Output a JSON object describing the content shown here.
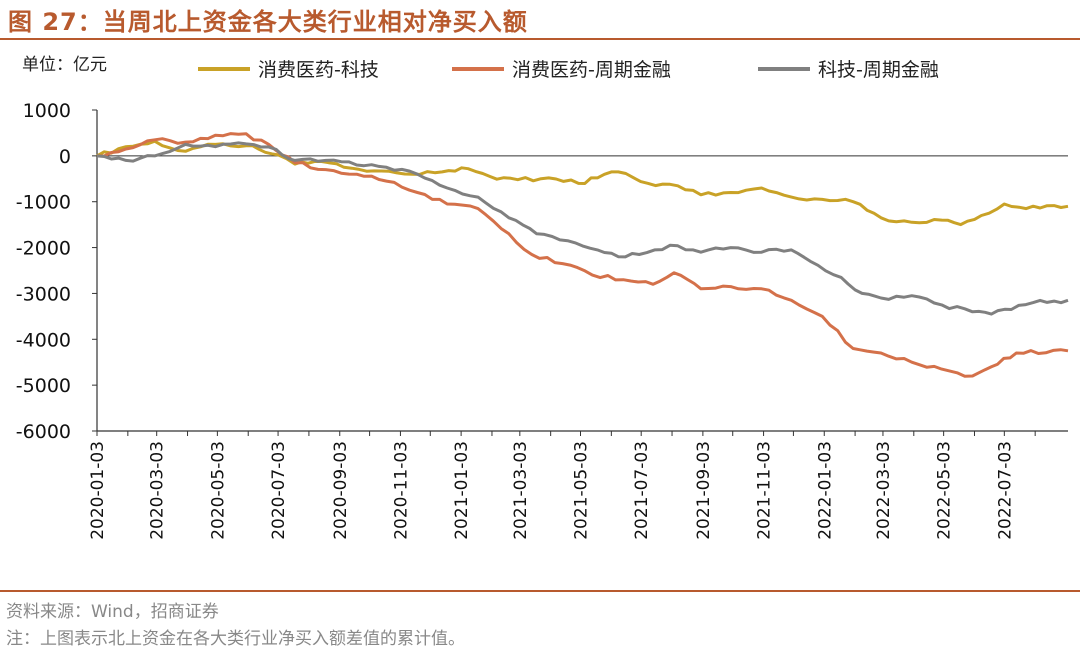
{
  "title": "图 27：当周北上资金各大类行业相对净买入额",
  "unit_label": "单位：亿元",
  "source": "资料来源：Wind，招商证券",
  "note": "注：上图表示北上资金在各大类行业净买入额差值的累计值。",
  "chart_data": {
    "type": "line",
    "ylim": [
      -6000,
      1000
    ],
    "yticks": [
      1000,
      0,
      -1000,
      -2000,
      -3000,
      -4000,
      -5000,
      -6000
    ],
    "xlim": [
      "2020-01-03",
      "2022-09-05"
    ],
    "x_tick_labels": [
      "2020-01-03",
      "2020-03-03",
      "2020-05-03",
      "2020-07-03",
      "2020-09-03",
      "2020-11-03",
      "2021-01-03",
      "2021-03-03",
      "2021-05-03",
      "2021-07-03",
      "2021-09-03",
      "2021-11-03",
      "2022-01-03",
      "2022-03-03",
      "2022-05-03",
      "2022-07-03"
    ],
    "series": [
      {
        "name": "消费医药-科技",
        "color": "#c9a227",
        "points": [
          [
            "2020-01-03",
            0
          ],
          [
            "2020-02-01",
            200
          ],
          [
            "2020-03-01",
            320
          ],
          [
            "2020-04-01",
            100
          ],
          [
            "2020-05-01",
            250
          ],
          [
            "2020-06-01",
            220
          ],
          [
            "2020-07-03",
            20
          ],
          [
            "2020-07-20",
            -180
          ],
          [
            "2020-08-15",
            -120
          ],
          [
            "2020-09-15",
            -270
          ],
          [
            "2020-10-15",
            -330
          ],
          [
            "2020-11-15",
            -400
          ],
          [
            "2020-12-15",
            -350
          ],
          [
            "2021-01-10",
            -280
          ],
          [
            "2021-02-01",
            -450
          ],
          [
            "2021-03-01",
            -520
          ],
          [
            "2021-04-01",
            -480
          ],
          [
            "2021-05-01",
            -600
          ],
          [
            "2021-05-20",
            -480
          ],
          [
            "2021-06-10",
            -350
          ],
          [
            "2021-07-10",
            -600
          ],
          [
            "2021-08-01",
            -620
          ],
          [
            "2021-09-01",
            -850
          ],
          [
            "2021-10-01",
            -800
          ],
          [
            "2021-11-01",
            -700
          ],
          [
            "2021-12-01",
            -900
          ],
          [
            "2022-01-01",
            -950
          ],
          [
            "2022-02-01",
            -1000
          ],
          [
            "2022-03-01",
            -1350
          ],
          [
            "2022-04-01",
            -1450
          ],
          [
            "2022-05-01",
            -1400
          ],
          [
            "2022-05-20",
            -1500
          ],
          [
            "2022-06-10",
            -1300
          ],
          [
            "2022-07-03",
            -1050
          ],
          [
            "2022-07-25",
            -1150
          ],
          [
            "2022-09-05",
            -1100
          ]
        ]
      },
      {
        "name": "消费医药-周期金融",
        "color": "#d4714a",
        "points": [
          [
            "2020-01-03",
            0
          ],
          [
            "2020-02-01",
            150
          ],
          [
            "2020-03-01",
            350
          ],
          [
            "2020-04-01",
            300
          ],
          [
            "2020-05-01",
            450
          ],
          [
            "2020-06-01",
            480
          ],
          [
            "2020-07-01",
            120
          ],
          [
            "2020-07-20",
            -150
          ],
          [
            "2020-08-20",
            -300
          ],
          [
            "2020-09-20",
            -400
          ],
          [
            "2020-10-20",
            -550
          ],
          [
            "2020-11-20",
            -800
          ],
          [
            "2020-12-20",
            -1050
          ],
          [
            "2021-01-20",
            -1150
          ],
          [
            "2021-02-20",
            -1700
          ],
          [
            "2021-03-15",
            -2150
          ],
          [
            "2021-04-15",
            -2350
          ],
          [
            "2021-05-15",
            -2600
          ],
          [
            "2021-06-15",
            -2700
          ],
          [
            "2021-07-15",
            -2800
          ],
          [
            "2021-08-05",
            -2550
          ],
          [
            "2021-09-01",
            -2900
          ],
          [
            "2021-10-01",
            -2850
          ],
          [
            "2021-11-01",
            -2900
          ],
          [
            "2021-12-01",
            -3150
          ],
          [
            "2022-01-01",
            -3500
          ],
          [
            "2022-02-01",
            -4200
          ],
          [
            "2022-03-01",
            -4300
          ],
          [
            "2022-04-01",
            -4500
          ],
          [
            "2022-05-01",
            -4650
          ],
          [
            "2022-06-01",
            -4800
          ],
          [
            "2022-06-20",
            -4600
          ],
          [
            "2022-07-15",
            -4300
          ],
          [
            "2022-09-05",
            -4250
          ]
        ]
      },
      {
        "name": "科技-周期金融",
        "color": "#808080",
        "points": [
          [
            "2020-01-03",
            0
          ],
          [
            "2020-02-01",
            -100
          ],
          [
            "2020-03-01",
            0
          ],
          [
            "2020-04-01",
            250
          ],
          [
            "2020-05-01",
            200
          ],
          [
            "2020-06-01",
            260
          ],
          [
            "2020-07-01",
            140
          ],
          [
            "2020-07-20",
            -100
          ],
          [
            "2020-08-20",
            -100
          ],
          [
            "2020-09-20",
            -200
          ],
          [
            "2020-10-20",
            -250
          ],
          [
            "2020-11-20",
            -400
          ],
          [
            "2020-12-20",
            -700
          ],
          [
            "2021-01-20",
            -900
          ],
          [
            "2021-02-20",
            -1350
          ],
          [
            "2021-03-20",
            -1700
          ],
          [
            "2021-04-20",
            -1850
          ],
          [
            "2021-05-20",
            -2050
          ],
          [
            "2021-06-10",
            -2200
          ],
          [
            "2021-07-01",
            -2150
          ],
          [
            "2021-08-01",
            -1950
          ],
          [
            "2021-09-01",
            -2100
          ],
          [
            "2021-10-01",
            -2000
          ],
          [
            "2021-11-01",
            -2100
          ],
          [
            "2021-12-01",
            -2050
          ],
          [
            "2021-12-20",
            -2300
          ],
          [
            "2022-01-20",
            -2650
          ],
          [
            "2022-02-10",
            -3000
          ],
          [
            "2022-03-01",
            -3100
          ],
          [
            "2022-04-01",
            -3050
          ],
          [
            "2022-05-01",
            -3250
          ],
          [
            "2022-06-01",
            -3400
          ],
          [
            "2022-06-20",
            -3450
          ],
          [
            "2022-07-10",
            -3350
          ],
          [
            "2022-08-01",
            -3200
          ],
          [
            "2022-09-05",
            -3150
          ]
        ]
      }
    ]
  }
}
